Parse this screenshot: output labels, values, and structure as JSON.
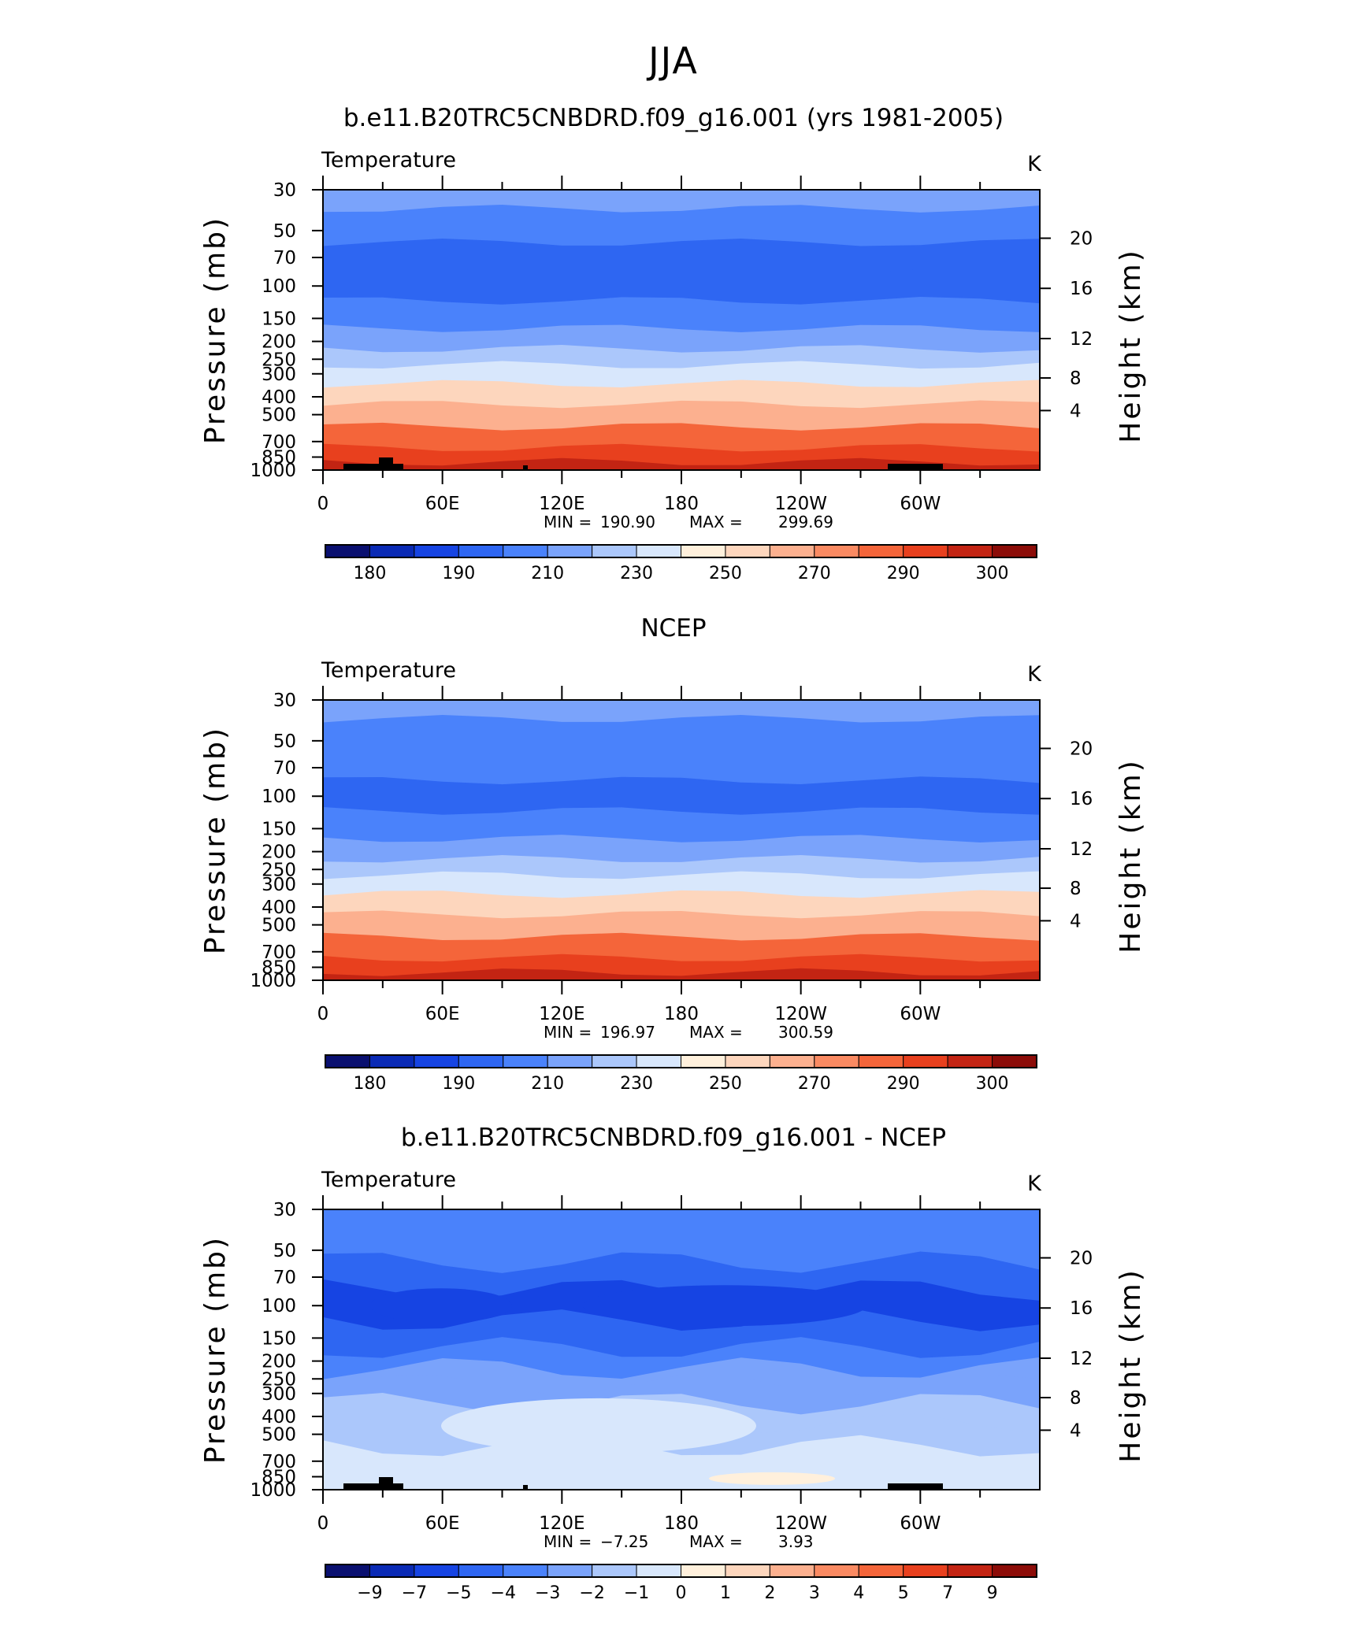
{
  "main_title": "JJA",
  "x_ticks": [
    "0",
    "60E",
    "120E",
    "180",
    "120W",
    "60W"
  ],
  "p_ticks": [
    30,
    50,
    70,
    100,
    150,
    200,
    250,
    300,
    400,
    500,
    700,
    850,
    1000
  ],
  "h_ticks": [
    20,
    16,
    12,
    8,
    4
  ],
  "left_axis_label": "Pressure (mb)",
  "right_axis_label": "Height (km)",
  "colors": [
    "#0a1070",
    "#0a2ab5",
    "#1644e3",
    "#2e66f2",
    "#4a82fb",
    "#7aa3fb",
    "#abc7fb",
    "#d8e7fc",
    "#fff0dc",
    "#fdd6bd",
    "#fcb08f",
    "#fa8a62",
    "#f4653a",
    "#e8401e",
    "#c32413",
    "#8c0c08"
  ],
  "chart_data": [
    {
      "type": "contour",
      "title": "b.e11.B20TRC5CNBDRD.f09_g16.001 (yrs 1981-2005)",
      "variable": "Temperature",
      "units": "K",
      "stats": {
        "min_label": "MIN =",
        "min": "190.90",
        "max_label": "MAX =",
        "max": "299.69"
      },
      "colorbar_levels": [
        "180",
        "190",
        "210",
        "230",
        "250",
        "270",
        "290",
        "300"
      ],
      "profile": [
        {
          "p": 30,
          "c": 5
        },
        {
          "p": 50,
          "c": 4
        },
        {
          "p": 70,
          "c": 3
        },
        {
          "p": 100,
          "c": 3
        },
        {
          "p": 150,
          "c": 4
        },
        {
          "p": 200,
          "c": 5
        },
        {
          "p": 250,
          "c": 6
        },
        {
          "p": 300,
          "c": 7
        },
        {
          "p": 400,
          "c": 9
        },
        {
          "p": 500,
          "c": 10
        },
        {
          "p": 700,
          "c": 12
        },
        {
          "p": 850,
          "c": 13
        },
        {
          "p": 1000,
          "c": 14
        }
      ],
      "terrain": true
    },
    {
      "type": "contour",
      "title": "NCEP",
      "variable": "Temperature",
      "units": "K",
      "stats": {
        "min_label": "MIN =",
        "min": "196.97",
        "max_label": "MAX =",
        "max": "300.59"
      },
      "colorbar_levels": [
        "180",
        "190",
        "210",
        "230",
        "250",
        "270",
        "290",
        "300"
      ],
      "profile": [
        {
          "p": 30,
          "c": 5
        },
        {
          "p": 50,
          "c": 4
        },
        {
          "p": 70,
          "c": 4
        },
        {
          "p": 100,
          "c": 3
        },
        {
          "p": 150,
          "c": 4
        },
        {
          "p": 200,
          "c": 5
        },
        {
          "p": 250,
          "c": 6
        },
        {
          "p": 300,
          "c": 7
        },
        {
          "p": 400,
          "c": 9
        },
        {
          "p": 500,
          "c": 10
        },
        {
          "p": 700,
          "c": 12
        },
        {
          "p": 850,
          "c": 13
        },
        {
          "p": 1000,
          "c": 14
        }
      ],
      "terrain": false
    },
    {
      "type": "contour",
      "title": "b.e11.B20TRC5CNBDRD.f09_g16.001 - NCEP",
      "variable": "Temperature",
      "units": "K",
      "stats": {
        "min_label": "MIN =",
        "min": "−7.25",
        "max_label": "MAX =",
        "max": "3.93"
      },
      "colorbar_levels": [
        "−9",
        "−7",
        "−5",
        "−4",
        "−3",
        "−2",
        "−1",
        "0",
        "1",
        "2",
        "3",
        "4",
        "5",
        "7",
        "9"
      ],
      "profile": [
        {
          "p": 30,
          "c": 4
        },
        {
          "p": 50,
          "c": 4
        },
        {
          "p": 70,
          "c": 3
        },
        {
          "p": 100,
          "c": 2
        },
        {
          "p": 150,
          "c": 3
        },
        {
          "p": 200,
          "c": 4
        },
        {
          "p": 250,
          "c": 5
        },
        {
          "p": 300,
          "c": 5
        },
        {
          "p": 400,
          "c": 6
        },
        {
          "p": 500,
          "c": 6
        },
        {
          "p": 700,
          "c": 7
        },
        {
          "p": 850,
          "c": 7
        },
        {
          "p": 1000,
          "c": 7
        }
      ],
      "terrain": true
    }
  ]
}
